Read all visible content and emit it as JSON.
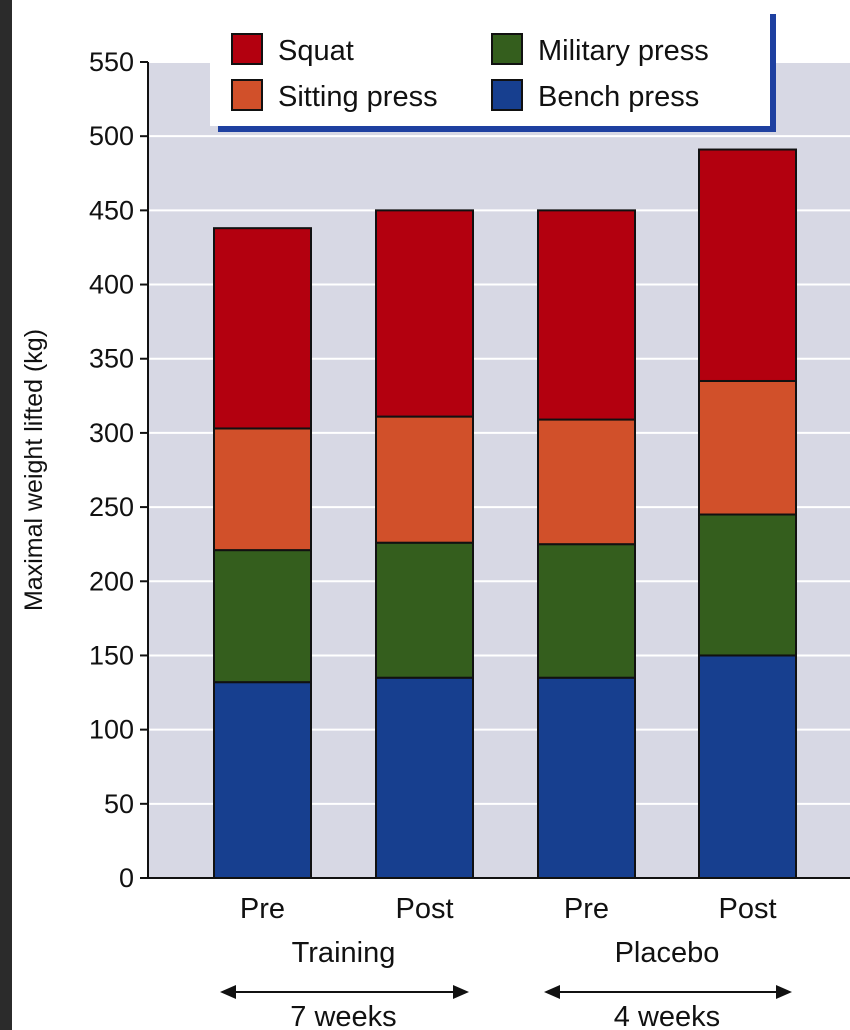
{
  "chart_data": {
    "type": "bar",
    "stacked": true,
    "ylabel": "Maximal weight lifted (kg)",
    "ylim": [
      0,
      550
    ],
    "yticks": [
      0,
      50,
      100,
      150,
      200,
      250,
      300,
      350,
      400,
      450,
      500,
      550
    ],
    "grid": true,
    "legend_position": "top",
    "categories": [
      "Pre",
      "Post",
      "Pre",
      "Post"
    ],
    "groups": [
      {
        "label": "Training",
        "span_label": "7 weeks"
      },
      {
        "label": "Placebo",
        "span_label": "4 weeks"
      }
    ],
    "series": [
      {
        "name": "Bench press",
        "color": "#173f8f",
        "values": [
          132,
          135,
          135,
          150
        ]
      },
      {
        "name": "Military press",
        "color": "#345e1d",
        "values": [
          89,
          91,
          90,
          95
        ]
      },
      {
        "name": "Sitting press",
        "color": "#d1502a",
        "values": [
          82,
          85,
          84,
          90
        ]
      },
      {
        "name": "Squat",
        "color": "#b3000f",
        "values": [
          135,
          139,
          141,
          156
        ]
      }
    ],
    "legend_order": [
      "Squat",
      "Military press",
      "Sitting press",
      "Bench press"
    ],
    "colors": {
      "plot_background": "#d7d8e4",
      "legend_accent": "#1e40a0",
      "page_background": "#2b2b2b"
    }
  }
}
